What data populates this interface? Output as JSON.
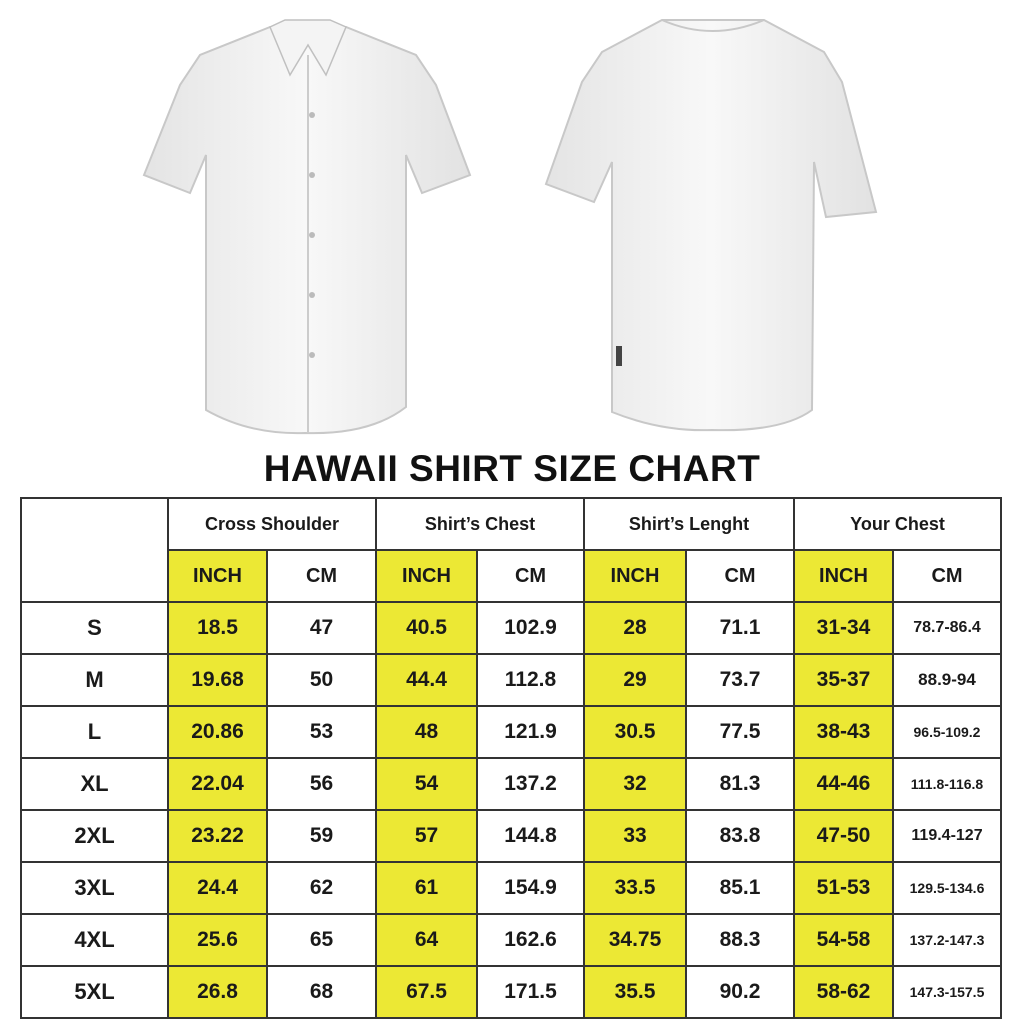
{
  "title": "HAWAII SHIRT SIZE CHART",
  "colors": {
    "highlight": "#ece834",
    "border": "#333333"
  },
  "images": [
    "shirt-front",
    "shirt-back"
  ],
  "chart_data": {
    "type": "table",
    "groups": [
      "Cross Shoulder",
      "Shirt’s Chest",
      "Shirt’s Lenght",
      "Your Chest"
    ],
    "units": [
      "INCH",
      "CM"
    ],
    "rows": [
      {
        "size": "S",
        "values": [
          "18.5",
          "47",
          "40.5",
          "102.9",
          "28",
          "71.1",
          "31-34",
          "78.7-86.4"
        ]
      },
      {
        "size": "M",
        "values": [
          "19.68",
          "50",
          "44.4",
          "112.8",
          "29",
          "73.7",
          "35-37",
          "88.9-94"
        ]
      },
      {
        "size": "L",
        "values": [
          "20.86",
          "53",
          "48",
          "121.9",
          "30.5",
          "77.5",
          "38-43",
          "96.5-109.2"
        ]
      },
      {
        "size": "XL",
        "values": [
          "22.04",
          "56",
          "54",
          "137.2",
          "32",
          "81.3",
          "44-46",
          "111.8-116.8"
        ]
      },
      {
        "size": "2XL",
        "values": [
          "23.22",
          "59",
          "57",
          "144.8",
          "33",
          "83.8",
          "47-50",
          "119.4-127"
        ]
      },
      {
        "size": "3XL",
        "values": [
          "24.4",
          "62",
          "61",
          "154.9",
          "33.5",
          "85.1",
          "51-53",
          "129.5-134.6"
        ]
      },
      {
        "size": "4XL",
        "values": [
          "25.6",
          "65",
          "64",
          "162.6",
          "34.75",
          "88.3",
          "54-58",
          "137.2-147.3"
        ]
      },
      {
        "size": "5XL",
        "values": [
          "26.8",
          "68",
          "67.5",
          "171.5",
          "35.5",
          "90.2",
          "58-62",
          "147.3-157.5"
        ]
      }
    ]
  }
}
